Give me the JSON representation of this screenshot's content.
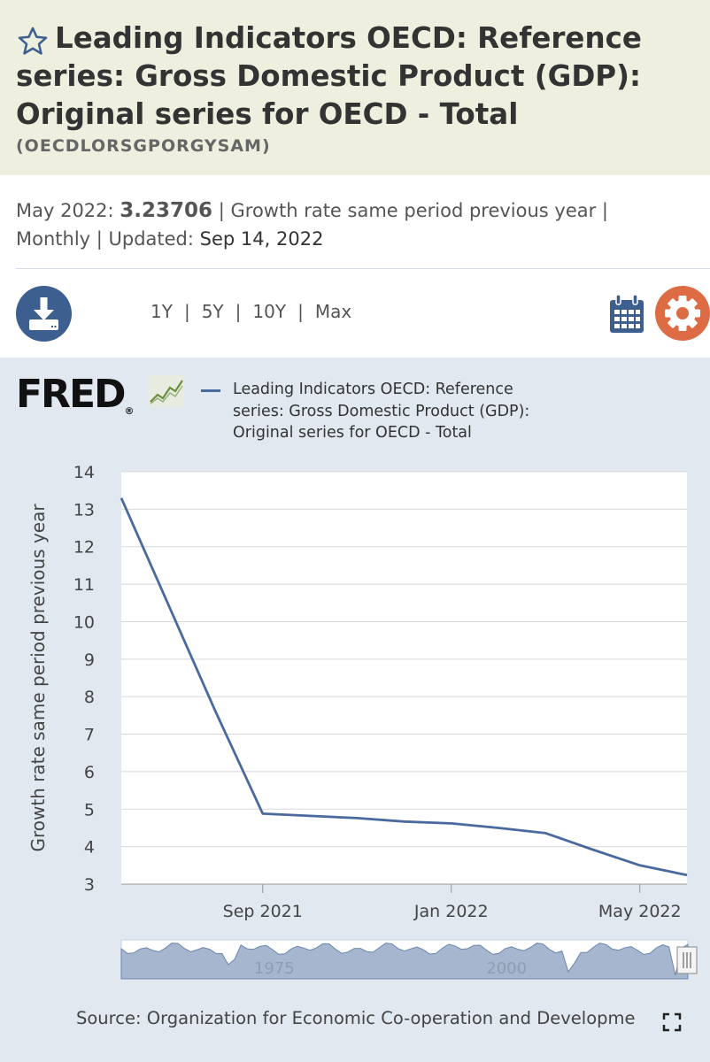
{
  "header": {
    "title": "Leading Indicators OECD: Reference series: Gross Domestic Product (GDP): Original series for OECD - Total",
    "series_id": "(OECDLORSGPORGYSAM)"
  },
  "meta": {
    "date_label": "May 2022:",
    "value": "3.23706",
    "units": "| Growth rate same period previous year |",
    "frequency": "Monthly | Updated:",
    "updated": "Sep 14, 2022"
  },
  "ranges": [
    "1Y",
    "5Y",
    "10Y",
    "Max"
  ],
  "logo": {
    "text": "FRED",
    "mark": "®"
  },
  "legend": {
    "label": "Leading Indicators OECD: Reference series: Gross Domestic Product (GDP): Original series for OECD - Total"
  },
  "colors": {
    "line": "#4a6a9e",
    "header_bg": "#efefe0",
    "chart_bg": "#e1e8f0",
    "accent": "#dd6b43",
    "button": "#3d5f8f"
  },
  "source": "Source: Organization for Economic Co-operation and Developme",
  "chart_data": {
    "type": "line",
    "ylabel": "Growth rate same period previous year",
    "ylim": [
      3,
      14
    ],
    "yticks": [
      3,
      4,
      5,
      6,
      7,
      8,
      9,
      10,
      11,
      12,
      13,
      14
    ],
    "xlim": [
      0,
      12
    ],
    "xticks": [
      {
        "label": "Sep 2021",
        "x": 3
      },
      {
        "label": "Jan 2022",
        "x": 7
      },
      {
        "label": "May 2022",
        "x": 11
      }
    ],
    "series": [
      {
        "name": "Leading Indicators OECD: Reference series: Gross Domestic Product (GDP): Original series for OECD - Total",
        "x": [
          0,
          2,
          3,
          4,
          5,
          6,
          7,
          8,
          9,
          10,
          11,
          12
        ],
        "values": [
          13.3,
          7.6,
          4.88,
          4.82,
          4.76,
          4.67,
          4.62,
          4.5,
          4.36,
          3.92,
          3.5,
          3.24
        ]
      }
    ],
    "navigator": {
      "labels": [
        "1975",
        "2000"
      ]
    }
  }
}
